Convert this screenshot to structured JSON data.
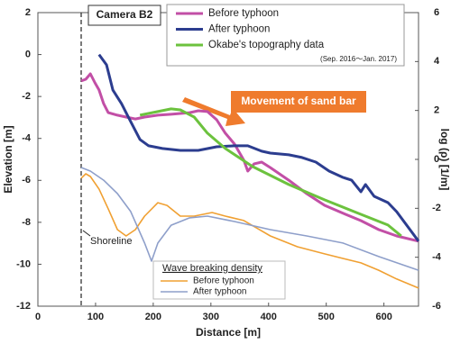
{
  "chart_data": {
    "type": "line",
    "x_label": "Distance [m]",
    "y_label": "Elevation [m]",
    "y2_label": "log (ρ) [1/m]",
    "xlim": [
      0,
      660
    ],
    "ylim": [
      -12,
      2
    ],
    "y2lim": [
      -6,
      6
    ],
    "xticks": [
      0,
      100,
      200,
      300,
      400,
      500,
      600
    ],
    "yticks": [
      2,
      0,
      -2,
      -4,
      -6,
      -8,
      -10,
      -12
    ],
    "y2ticks": [
      6,
      4,
      2,
      0,
      -2,
      -4,
      -6
    ],
    "annotations": [
      "Camera B2",
      "Movement of sand bar",
      "Shoreline"
    ],
    "legend_note": "(Sep. 2016～Jan. 2017)",
    "legend2_title": "Wave breaking density",
    "series": [
      {
        "name": "Before typhoon",
        "color": "#c24fa6",
        "x": [
          75,
          83,
          91,
          99,
          106,
          114,
          122,
          138,
          153,
          169,
          185,
          208,
          231,
          247,
          263,
          278,
          294,
          310,
          325,
          341,
          357,
          364,
          375,
          388,
          403,
          435,
          466,
          497,
          529,
          560,
          591,
          622,
          660
        ],
        "values": [
          -1.26,
          -1.18,
          -0.92,
          -1.35,
          -1.69,
          -2.34,
          -2.77,
          -2.89,
          -2.98,
          -3.07,
          -2.98,
          -2.89,
          -2.85,
          -2.81,
          -2.77,
          -2.68,
          -2.72,
          -3.11,
          -3.75,
          -4.27,
          -5.04,
          -5.56,
          -5.21,
          -5.13,
          -5.39,
          -5.99,
          -6.63,
          -7.19,
          -7.57,
          -7.92,
          -8.35,
          -8.65,
          -8.9
        ]
      },
      {
        "name": "After typhoon",
        "color": "#2c3d8f",
        "x": [
          106,
          119,
          130,
          145,
          161,
          177,
          192,
          216,
          247,
          278,
          310,
          341,
          364,
          388,
          403,
          435,
          458,
          482,
          505,
          529,
          544,
          560,
          568,
          583,
          607,
          622,
          660
        ],
        "values": [
          0.0,
          -0.49,
          -1.69,
          -2.34,
          -3.2,
          -4.05,
          -4.35,
          -4.48,
          -4.57,
          -4.57,
          -4.4,
          -4.35,
          -4.35,
          -4.61,
          -4.7,
          -4.78,
          -4.91,
          -5.13,
          -5.56,
          -5.86,
          -5.99,
          -6.54,
          -6.2,
          -6.76,
          -7.06,
          -7.49,
          -8.9
        ]
      },
      {
        "name": "Okabe's topography data",
        "color": "#6cc23e",
        "x": [
          177,
          208,
          231,
          247,
          271,
          294,
          325,
          372,
          435,
          497,
          560,
          607,
          630
        ],
        "values": [
          -2.89,
          -2.72,
          -2.59,
          -2.64,
          -2.98,
          -3.75,
          -4.48,
          -5.34,
          -6.2,
          -6.93,
          -7.62,
          -8.13,
          -8.65
        ]
      },
      {
        "name": "Before typhoon",
        "color": "#f0a032",
        "axis": "y2",
        "x": [
          75,
          83,
          91,
          106,
          122,
          138,
          153,
          169,
          185,
          208,
          224,
          247,
          271,
          302,
          325,
          357,
          403,
          450,
          497,
          560,
          591,
          622,
          660
        ],
        "values": [
          -0.77,
          -0.59,
          -0.7,
          -1.21,
          -2.02,
          -2.87,
          -3.13,
          -2.87,
          -2.32,
          -1.77,
          -1.88,
          -2.32,
          -2.32,
          -2.17,
          -2.32,
          -2.5,
          -3.13,
          -3.57,
          -3.86,
          -4.23,
          -4.53,
          -4.89,
          -5.26
        ]
      },
      {
        "name": "After typhoon",
        "color": "#8e9fca",
        "axis": "y2",
        "x": [
          75,
          91,
          114,
          138,
          161,
          185,
          197,
          208,
          231,
          263,
          294,
          341,
          403,
          466,
          529,
          591,
          660
        ],
        "values": [
          -0.33,
          -0.48,
          -0.85,
          -1.4,
          -2.13,
          -3.42,
          -4.16,
          -3.42,
          -2.69,
          -2.39,
          -2.32,
          -2.54,
          -2.87,
          -3.13,
          -3.42,
          -3.97,
          -4.53
        ]
      }
    ]
  }
}
